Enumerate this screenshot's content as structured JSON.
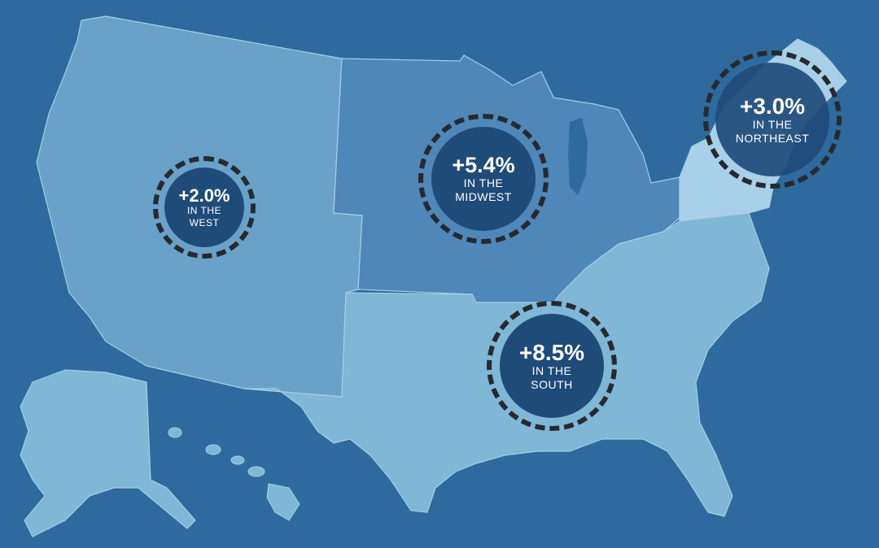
{
  "colors": {
    "background": "#2e6a9e",
    "west": "#6aa1c8",
    "midwest": "#4f87b8",
    "south": "#80b6d6",
    "northeast": "#a8d0e8",
    "badge_fill": "#1f4b79",
    "badge_ring": "#262a30"
  },
  "regions": [
    {
      "name": "West",
      "change_pct": 2.0,
      "label_value": "+2.0%",
      "label_line1": "IN THE",
      "label_line2": "WEST"
    },
    {
      "name": "Midwest",
      "change_pct": 5.4,
      "label_value": "+5.4%",
      "label_line1": "IN THE",
      "label_line2": "MIDWEST"
    },
    {
      "name": "Northeast",
      "change_pct": 3.0,
      "label_value": "+3.0%",
      "label_line1": "IN THE",
      "label_line2": "NORTHEAST"
    },
    {
      "name": "South",
      "change_pct": 8.5,
      "label_value": "+8.5%",
      "label_line1": "IN THE",
      "label_line2": "SOUTH"
    }
  ]
}
